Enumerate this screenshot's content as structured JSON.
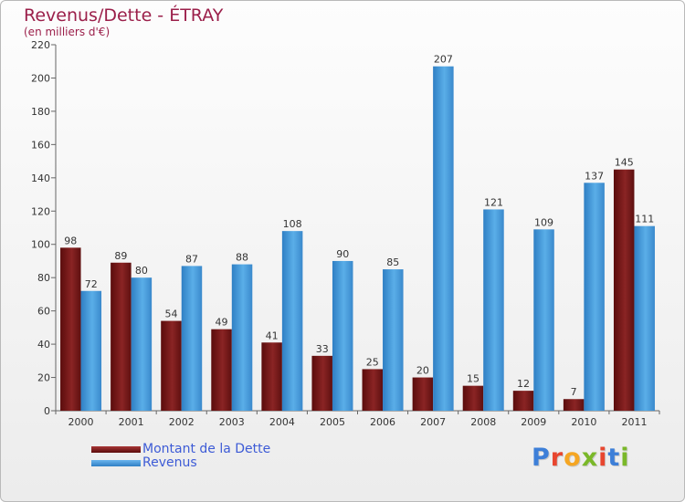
{
  "title": "Revenus/Dette - ÉTRAY",
  "subtitle": "(en milliers d'€)",
  "legend": {
    "debt_label": "Montant de la Dette",
    "revenue_label": "Revenus"
  },
  "logo": {
    "text": "Proxiti",
    "letter_colors": [
      "#3d7fd8",
      "#e8462f",
      "#f5a623",
      "#7ab829",
      "#e8462f",
      "#3d7fd8",
      "#7ab829"
    ]
  },
  "colors": {
    "debt": "#7a1a1a",
    "debt_top": "#a83636",
    "revenue": "#4a9ee0",
    "revenue_top": "#6bb5ee",
    "title": "#9b1f4a"
  },
  "chart_data": {
    "type": "bar",
    "title": "Revenus/Dette - ÉTRAY",
    "subtitle": "(en milliers d'€)",
    "categories": [
      "2000",
      "2001",
      "2002",
      "2003",
      "2004",
      "2005",
      "2006",
      "2007",
      "2008",
      "2009",
      "2010",
      "2011"
    ],
    "series": [
      {
        "name": "Montant de la Dette",
        "values": [
          98,
          89,
          54,
          49,
          41,
          33,
          25,
          20,
          15,
          12,
          7,
          145
        ]
      },
      {
        "name": "Revenus",
        "values": [
          72,
          80,
          87,
          88,
          108,
          90,
          85,
          207,
          121,
          109,
          137,
          111
        ]
      }
    ],
    "ylim": [
      0,
      220
    ],
    "yticks": [
      0,
      20,
      40,
      60,
      80,
      100,
      120,
      140,
      160,
      180,
      200,
      220
    ],
    "grid": false,
    "legend_position": "bottom-left"
  }
}
